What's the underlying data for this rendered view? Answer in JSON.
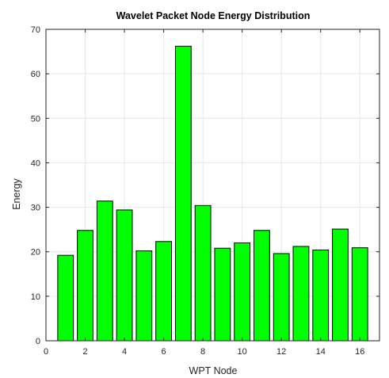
{
  "chart_data": {
    "type": "bar",
    "title": "Wavelet Packet Node Energy Distribution",
    "xlabel": "WPT Node",
    "ylabel": "Energy",
    "x": [
      1,
      2,
      3,
      4,
      5,
      6,
      7,
      8,
      9,
      10,
      11,
      12,
      13,
      14,
      15,
      16
    ],
    "values": [
      19.2,
      24.8,
      31.4,
      29.4,
      20.2,
      22.3,
      66.2,
      30.4,
      20.8,
      22.0,
      24.8,
      19.6,
      21.2,
      20.4,
      25.1,
      20.9
    ],
    "xlim": [
      0,
      17
    ],
    "ylim": [
      0,
      70
    ],
    "xticks": [
      0,
      2,
      4,
      6,
      8,
      10,
      12,
      14,
      16
    ],
    "yticks": [
      0,
      10,
      20,
      30,
      40,
      50,
      60,
      70
    ],
    "grid": true,
    "legend": "none",
    "colors": {
      "bar_fill": "#00ff00",
      "bar_edge": "#000000",
      "grid": "#e6e6e6",
      "axis": "#262626"
    }
  }
}
